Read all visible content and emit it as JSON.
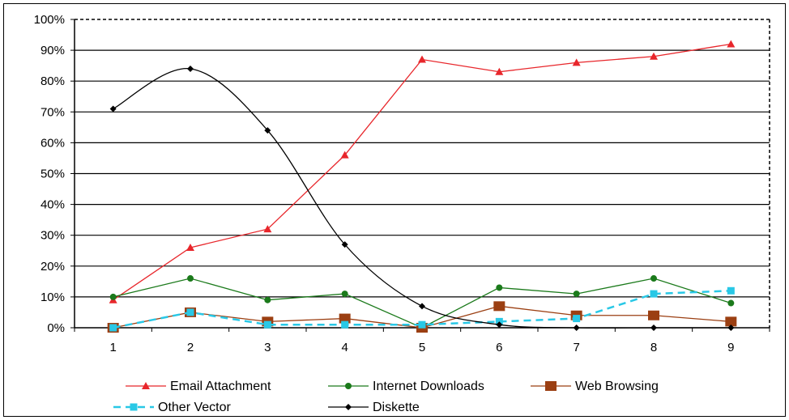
{
  "chart_data": {
    "type": "line",
    "title": "",
    "xlabel": "",
    "ylabel": "",
    "x": [
      "1",
      "2",
      "3",
      "4",
      "5",
      "6",
      "7",
      "8",
      "9"
    ],
    "y_ticks": [
      "0%",
      "10%",
      "20%",
      "30%",
      "40%",
      "50%",
      "60%",
      "70%",
      "80%",
      "90%",
      "100%"
    ],
    "ylim": [
      0,
      100
    ],
    "grid": "horizontal",
    "legend_position": "bottom",
    "series": [
      {
        "name": "Email Attachment",
        "color": "#e8262b",
        "marker": "triangle",
        "dashed": false,
        "smooth": false,
        "values": [
          9,
          26,
          32,
          56,
          87,
          83,
          86,
          88,
          92
        ]
      },
      {
        "name": "Internet Downloads",
        "color": "#1b7a1b",
        "marker": "circle",
        "dashed": false,
        "smooth": false,
        "values": [
          10,
          16,
          9,
          11,
          0,
          13,
          11,
          16,
          8
        ]
      },
      {
        "name": "Web Browsing",
        "color": "#9b3f12",
        "marker": "square-large",
        "dashed": false,
        "smooth": false,
        "values": [
          0,
          5,
          2,
          3,
          0,
          7,
          4,
          4,
          2
        ]
      },
      {
        "name": "Other Vector",
        "color": "#29c8e6",
        "marker": "square",
        "dashed": true,
        "smooth": false,
        "values": [
          0,
          5,
          1,
          1,
          1,
          2,
          3,
          11,
          12
        ]
      },
      {
        "name": "Diskette",
        "color": "#000000",
        "marker": "diamond",
        "dashed": false,
        "smooth": true,
        "values": [
          71,
          84,
          64,
          27,
          7,
          1,
          0,
          0,
          0
        ]
      }
    ]
  }
}
